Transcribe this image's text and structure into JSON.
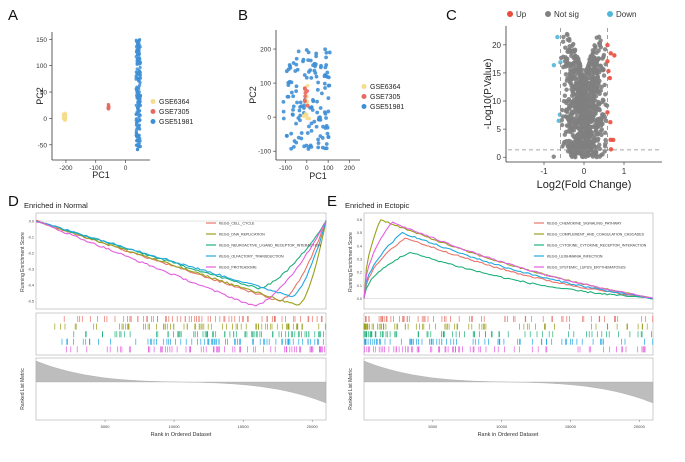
{
  "panels": {
    "A": {
      "letter": "A"
    },
    "B": {
      "letter": "B"
    },
    "C": {
      "letter": "C"
    },
    "D": {
      "letter": "D",
      "subtitle": "Enriched in Normal"
    },
    "E": {
      "letter": "E",
      "subtitle": "Enriched in Ectopic"
    }
  },
  "chart_data": [
    {
      "panel": "A",
      "type": "scatter",
      "xlabel": "PC1",
      "ylabel": "PC2",
      "xticks": [
        -200,
        -100,
        0
      ],
      "yticks": [
        -50,
        0,
        50,
        100,
        150
      ],
      "xlim": [
        -240,
        75
      ],
      "ylim": [
        -75,
        160
      ],
      "legend_position": "right",
      "series": [
        {
          "name": "GSE6364",
          "color": "#f6dc8a",
          "x_range": [
            -210,
            -200
          ],
          "y_range": [
            -5,
            10
          ],
          "count": 25
        },
        {
          "name": "GSE7305",
          "color": "#e96a61",
          "x_range": [
            -60,
            -55
          ],
          "y_range": [
            18,
            27
          ],
          "count": 12
        },
        {
          "name": "GSE51981",
          "color": "#3f8fd6",
          "x_range": [
            35,
            50
          ],
          "y_range": [
            -60,
            150
          ],
          "count": 180
        }
      ]
    },
    {
      "panel": "B",
      "type": "scatter",
      "xlabel": "PC1",
      "ylabel": "PC2",
      "xticks": [
        -100,
        0,
        100,
        200
      ],
      "yticks": [
        -100,
        0,
        100,
        200
      ],
      "xlim": [
        -135,
        240
      ],
      "ylim": [
        -120,
        250
      ],
      "legend_position": "right",
      "series": [
        {
          "name": "GSE6364",
          "color": "#f6dc8a",
          "x_range": [
            -15,
            15
          ],
          "y_range": [
            -25,
            100
          ],
          "count": 12
        },
        {
          "name": "GSE7305",
          "color": "#e96a61",
          "x_range": [
            -10,
            10
          ],
          "y_range": [
            30,
            90
          ],
          "count": 8
        },
        {
          "name": "GSE51981",
          "color": "#3f8fd6",
          "x_range": [
            -110,
            110
          ],
          "y_range": [
            -95,
            200
          ],
          "count": 140
        }
      ]
    },
    {
      "panel": "C",
      "type": "scatter",
      "title_legend": [
        "Up",
        "Not sig",
        "Down"
      ],
      "xlabel": "Log2(Fold Change)",
      "ylabel": "-Log10(P.Value)",
      "xticks": [
        -1,
        0,
        1
      ],
      "yticks": [
        0,
        5,
        10,
        15,
        20
      ],
      "xlim": [
        -1.9,
        1.9
      ],
      "ylim": [
        -0.5,
        23
      ],
      "thresholds": {
        "fc": [
          -0.585,
          0.585
        ],
        "p": 1.3
      },
      "legend_position": "top",
      "series": [
        {
          "name": "Up",
          "color": "#e74c3c"
        },
        {
          "name": "Not sig",
          "color": "#808080"
        },
        {
          "name": "Down",
          "color": "#4fb8d9"
        }
      ]
    },
    {
      "panel": "D",
      "type": "line",
      "ylabel": "Running Enrichment Score",
      "ylabel2": "Ranked List Metric",
      "xlabel": "Rank in Ordered Dataset",
      "xticks": [
        "5000",
        "10000",
        "15000",
        "20000"
      ],
      "yticks": [
        "0.0",
        "-0.1",
        "-0.2",
        "-0.3",
        "-0.4",
        "-0.5"
      ],
      "ylim": [
        -0.55,
        0.05
      ],
      "series": [
        {
          "name": "KEGG_CELL_CYCLE",
          "color": "#e8756a",
          "minimum_rank": 17600,
          "minimum_score": -0.5
        },
        {
          "name": "KEGG_DNA_REPLICATION",
          "color": "#9aa01b",
          "minimum_rank": 19000,
          "minimum_score": -0.53
        },
        {
          "name": "KEGG_NEUROACTIVE_LIGAND_RECEPTOR_INTERACTION",
          "color": "#1fb07a",
          "minimum_rank": 16000,
          "minimum_score": -0.42
        },
        {
          "name": "KEGG_OLFACTORY_TRANSDUCTION",
          "color": "#21a6e0",
          "minimum_rank": 18500,
          "minimum_score": -0.47
        },
        {
          "name": "KEGG_PROTEASOME",
          "color": "#e45ee0",
          "minimum_rank": 15700,
          "minimum_score": -0.53
        }
      ]
    },
    {
      "panel": "E",
      "type": "line",
      "ylabel": "Running Enrichment Score",
      "ylabel2": "Ranked List Metric",
      "xlabel": "Rank in Ordered Dataset",
      "xticks": [
        "5000",
        "10000",
        "15000",
        "20000"
      ],
      "yticks": [
        "0.6",
        "0.5",
        "0.4",
        "0.3",
        "0.2",
        "0.1",
        "0.0"
      ],
      "ylim": [
        -0.08,
        0.65
      ],
      "series": [
        {
          "name": "KEGG_CHEMOKINE_SIGNALING_PATHWAY",
          "color": "#e8756a",
          "peak_rank": 3000,
          "peak_score": 0.46
        },
        {
          "name": "KEGG_COMPLEMENT_AND_COAGULATION_CASCADES",
          "color": "#9aa01b",
          "peak_rank": 1200,
          "peak_score": 0.6
        },
        {
          "name": "KEGG_CYTOKINE_CYTOKINE_RECEPTOR_INTERACTION",
          "color": "#1fb07a",
          "peak_rank": 3300,
          "peak_score": 0.35
        },
        {
          "name": "KEGG_LEISHMANIA_INFECTION",
          "color": "#21a6e0",
          "peak_rank": 2800,
          "peak_score": 0.5
        },
        {
          "name": "KEGG_SYSTEMIC_LUPUS_ERYTHEMATOSUS",
          "color": "#e45ee0",
          "peak_rank": 2000,
          "peak_score": 0.58
        }
      ]
    }
  ]
}
